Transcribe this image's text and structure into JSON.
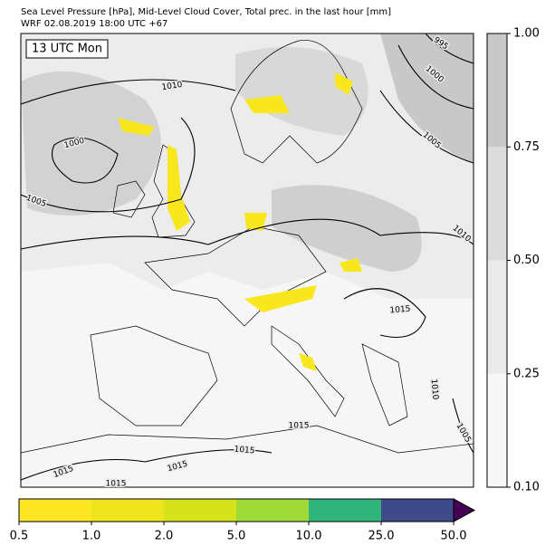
{
  "header": {
    "line1": "Sea Level Pressure [hPa], Mid-Level Cloud Cover, Total prec. in the last hour [mm]",
    "line2": "WRF 02.08.2019 18:00 UTC +67"
  },
  "map": {
    "time_label": "13 UTC Mon",
    "contour_labels": [
      "1010",
      "1000",
      "1005",
      "995",
      "1000",
      "1005",
      "1010",
      "1015",
      "1010",
      "1015",
      "1015",
      "1015",
      "1015",
      "1015",
      "1005"
    ]
  },
  "cloud_colorbar": {
    "ticks": [
      "0.10",
      "0.25",
      "0.50",
      "0.75",
      "1.00"
    ],
    "colors": [
      "#f7f7f7",
      "#ebebeb",
      "#dcdcdc",
      "#c8c8c8"
    ]
  },
  "precip_colorbar": {
    "ticks": [
      "0.5",
      "1.0",
      "2.0",
      "5.0",
      "10.0",
      "25.0",
      "50.0"
    ],
    "colors": [
      "#fde725",
      "#eee51c",
      "#d6e21a",
      "#a0da39",
      "#2fb47c",
      "#3e4a89",
      "#440154"
    ]
  }
}
